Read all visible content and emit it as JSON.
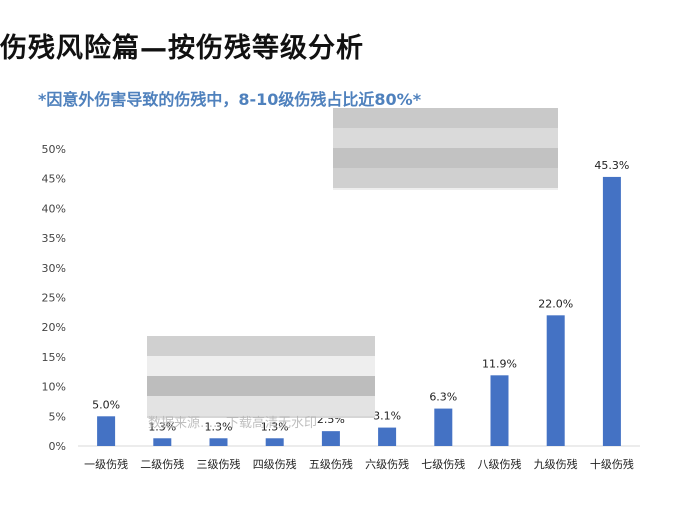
{
  "header": {
    "title": "伤残风险篇—按伤残等级分析",
    "subtitle": "*因意外伤害导致的伤残中，8-10级伤残占比近80%*"
  },
  "watermark": {
    "text": "数据来源……下载高清无水印"
  },
  "colors": {
    "bar": "#4472c4",
    "subtitle": "#4f81bd",
    "axis": "#d9d9d9"
  },
  "chart_data": {
    "type": "bar",
    "categories": [
      "一级伤残",
      "二级伤残",
      "三级伤残",
      "四级伤残",
      "五级伤残",
      "六级伤残",
      "七级伤残",
      "八级伤残",
      "九级伤残",
      "十级伤残"
    ],
    "values": [
      5.0,
      1.3,
      1.3,
      1.3,
      2.5,
      3.1,
      6.3,
      11.9,
      22.0,
      45.3
    ],
    "data_labels": [
      "5.0%",
      "1.3%",
      "1.3%",
      "1.3%",
      "2.5%",
      "3.1%",
      "6.3%",
      "11.9%",
      "22.0%",
      "45.3%"
    ],
    "ylim": [
      0,
      50
    ],
    "yticks": [
      0,
      5,
      10,
      15,
      20,
      25,
      30,
      35,
      40,
      45,
      50
    ],
    "ytick_labels": [
      "0%",
      "5%",
      "10%",
      "15%",
      "20%",
      "25%",
      "30%",
      "35%",
      "40%",
      "45%",
      "50%"
    ],
    "grid": false,
    "legend": "none"
  }
}
